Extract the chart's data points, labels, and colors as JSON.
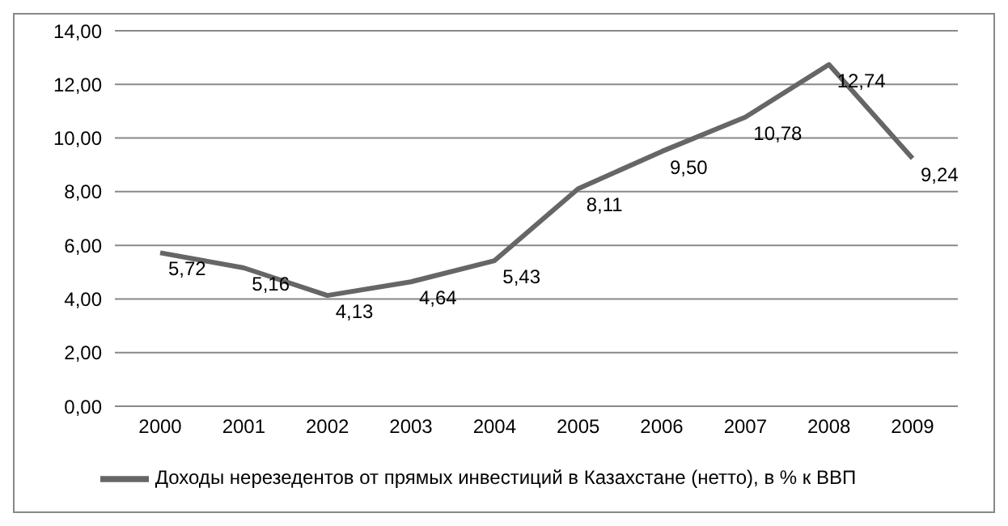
{
  "chart_data": {
    "type": "line",
    "categories": [
      "2000",
      "2001",
      "2002",
      "2003",
      "2004",
      "2005",
      "2006",
      "2007",
      "2008",
      "2009"
    ],
    "series": [
      {
        "name": "Доходы нерезедентов от прямых инвестиций в Казахстане (нетто), в % к ВВП",
        "color": "#666666",
        "values": [
          5.72,
          5.16,
          4.13,
          4.64,
          5.43,
          8.11,
          9.5,
          10.78,
          12.74,
          9.24
        ],
        "value_labels": [
          "5,72",
          "5,16",
          "4,13",
          "4,64",
          "5,43",
          "8,11",
          "9,50",
          "10,78",
          "12,74",
          "9,24"
        ]
      }
    ],
    "ylim": [
      0,
      14
    ],
    "yticks": [
      {
        "value": 0,
        "label": "0,00"
      },
      {
        "value": 2,
        "label": "2,00"
      },
      {
        "value": 4,
        "label": "4,00"
      },
      {
        "value": 6,
        "label": "6,00"
      },
      {
        "value": 8,
        "label": "8,00"
      },
      {
        "value": 10,
        "label": "10,00"
      },
      {
        "value": 12,
        "label": "12,00"
      },
      {
        "value": 14,
        "label": "14,00"
      }
    ],
    "grid": "y",
    "legend": "bottom",
    "marker": "none",
    "line_style": "solid"
  }
}
